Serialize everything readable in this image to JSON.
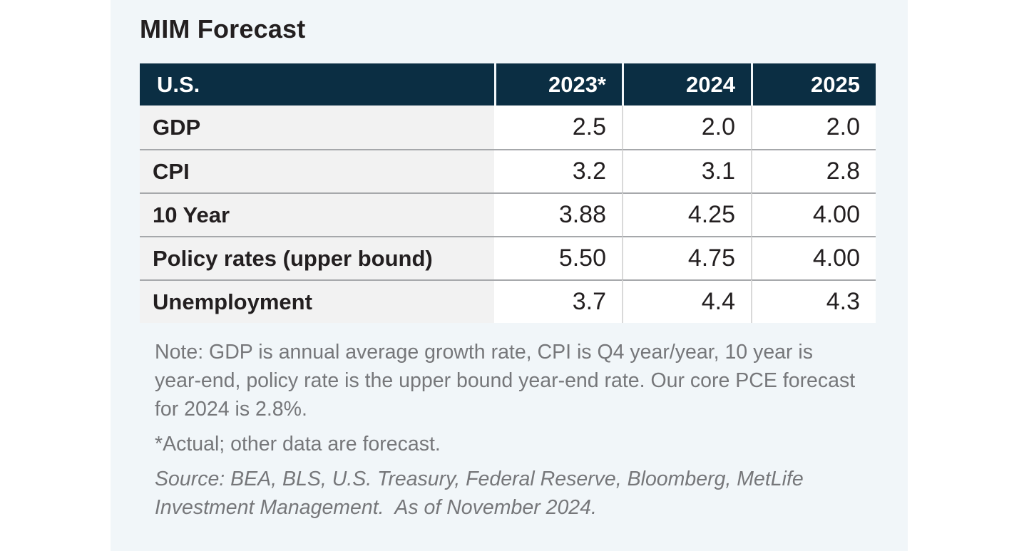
{
  "title": "MIM Forecast",
  "table": {
    "header": {
      "region": "U.S.",
      "years": [
        "2023*",
        "2024",
        "2025"
      ]
    },
    "rows": [
      {
        "label": "GDP",
        "values": [
          "2.5",
          "2.0",
          "2.0"
        ]
      },
      {
        "label": "CPI",
        "values": [
          "3.2",
          "3.1",
          "2.8"
        ]
      },
      {
        "label": "10 Year",
        "values": [
          "3.88",
          "4.25",
          "4.00"
        ]
      },
      {
        "label": "Policy rates (upper bound)",
        "values": [
          "5.50",
          "4.75",
          "4.00"
        ]
      },
      {
        "label": "Unemployment",
        "values": [
          "3.7",
          "4.4",
          "4.3"
        ]
      }
    ]
  },
  "notes": {
    "note": "Note: GDP is annual average growth rate, CPI is Q4 year/year, 10 year is year-end, policy rate is the upper bound year-end rate. Our core PCE forecast for 2024 is 2.8%.",
    "actual": "*Actual; other data are forecast.",
    "source": "Source: BEA, BLS, U.S. Treasury, Federal Reserve, Bloomberg, MetLife Investment Management.  As of November 2024."
  },
  "colors": {
    "panel_bg": "#f1f6f9",
    "header_bg": "#0b2e43",
    "label_bg": "#f2f2f2",
    "cell_bg": "#ffffff",
    "row_border": "#a6a8ab",
    "col_divider": "#d9d9d9",
    "text_dark": "#231f20",
    "note_gray": "#76777a"
  },
  "chart_data": {
    "type": "table",
    "title": "MIM Forecast",
    "region": "U.S.",
    "categories": [
      "2023*",
      "2024",
      "2025"
    ],
    "series": [
      {
        "name": "GDP",
        "values": [
          2.5,
          2.0,
          2.0
        ]
      },
      {
        "name": "CPI",
        "values": [
          3.2,
          3.1,
          2.8
        ]
      },
      {
        "name": "10 Year",
        "values": [
          3.88,
          4.25,
          4.0
        ]
      },
      {
        "name": "Policy rates (upper bound)",
        "values": [
          5.5,
          4.75,
          4.0
        ]
      },
      {
        "name": "Unemployment",
        "values": [
          3.7,
          4.4,
          4.3
        ]
      }
    ],
    "annotations": [
      "Note: GDP is annual average growth rate, CPI is Q4 year/year, 10 year is year-end, policy rate is the upper bound year-end rate. Our core PCE forecast for 2024 is 2.8%.",
      "*Actual; other data are forecast.",
      "Source: BEA, BLS, U.S. Treasury, Federal Reserve, Bloomberg, MetLife Investment Management.  As of November 2024."
    ]
  }
}
